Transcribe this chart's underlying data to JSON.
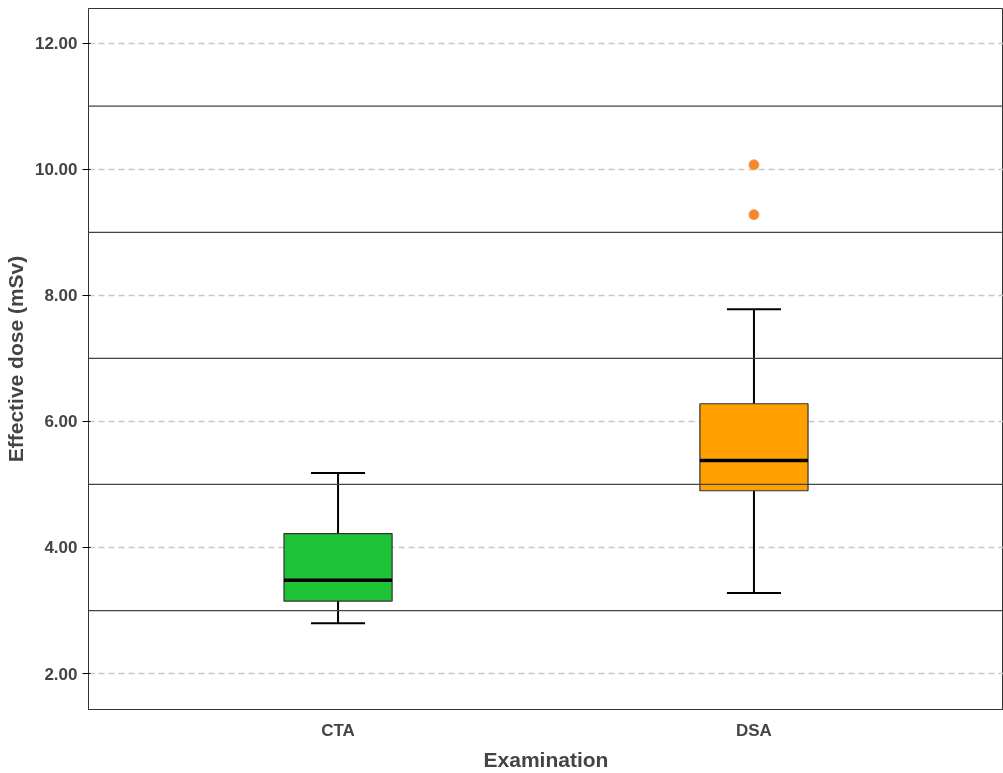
{
  "chart_data": {
    "type": "box",
    "xlabel": "Examination",
    "ylabel": "Effective dose (mSv)",
    "categories": [
      "CTA",
      "DSA"
    ],
    "colors": [
      "#1ec337",
      "#ffa000"
    ],
    "boxes": [
      {
        "low": 2.8,
        "q1": 3.15,
        "median": 3.48,
        "q3": 4.22,
        "high": 5.18
      },
      {
        "low": 3.28,
        "q1": 4.9,
        "median": 5.38,
        "q3": 6.28,
        "high": 7.78,
        "outliers": [
          10.07,
          9.28
        ]
      }
    ],
    "ylim": [
      1.43,
      12.55
    ],
    "yticks": [
      {
        "value": 2,
        "label": "2.00"
      },
      {
        "value": 4,
        "label": "4.00"
      },
      {
        "value": 6,
        "label": "6.00"
      },
      {
        "value": 8,
        "label": "8.00"
      },
      {
        "value": 10,
        "label": "10.00"
      },
      {
        "value": 12,
        "label": "12.00"
      }
    ],
    "ref_lines": [
      {
        "axis": "y",
        "value": 3,
        "label": null
      },
      {
        "axis": "y",
        "value": 5,
        "label": null
      },
      {
        "axis": "y",
        "value": 7,
        "label": null
      },
      {
        "axis": "y",
        "value": 9,
        "label": null
      },
      {
        "axis": "y",
        "value": 11,
        "label": null
      }
    ],
    "grid": "y"
  }
}
